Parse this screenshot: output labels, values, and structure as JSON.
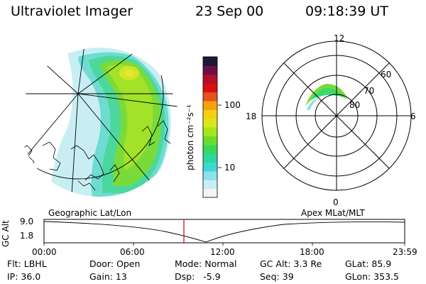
{
  "header": {
    "instrument": "Ultraviolet Imager",
    "date": "23 Sep 00",
    "time": "09:18:39 UT"
  },
  "colorbar": {
    "label": "photon cm⁻²s⁻¹",
    "tick_100": "100",
    "tick_10": "10",
    "colors": [
      "#f4f4f4",
      "#c8eef4",
      "#8ee0ec",
      "#3fd8d0",
      "#2cd8a0",
      "#3ad85a",
      "#6cdc2c",
      "#a6e41c",
      "#d8e81c",
      "#f6d010",
      "#f6a010",
      "#e85020",
      "#d81010",
      "#b0102c",
      "#6c1044",
      "#1c1838"
    ]
  },
  "left_panel": {
    "caption": "Geographic Lat/Lon"
  },
  "right_panel": {
    "caption": "Apex MLat/MLT",
    "mlt_12": "12",
    "mlt_18": "18",
    "mlt_6": "6",
    "mlt_0": "0",
    "lat_60": "60",
    "lat_70": "70",
    "lat_80": "80"
  },
  "altitude_plot": {
    "ylabel": "GC Alt",
    "tick_top": "9.0",
    "tick_bottom": "1.8",
    "x_ticks": [
      "00:00",
      "06:00",
      "12:00",
      "18:00",
      "23:59"
    ],
    "current_time_marker_color": "#cc0000"
  },
  "info": {
    "filter": "Flt: LBHL",
    "ip": "IP: 36.0",
    "door": "Door: Open",
    "gain": "Gain: 13",
    "mode": "Mode: Normal",
    "dsp": "Dsp:   -5.9",
    "gc_alt": "GC Alt: 3.3 Re",
    "seq": "Seq: 39",
    "glat": "GLat: 85.9",
    "glon": "GLon: 353.5"
  }
}
